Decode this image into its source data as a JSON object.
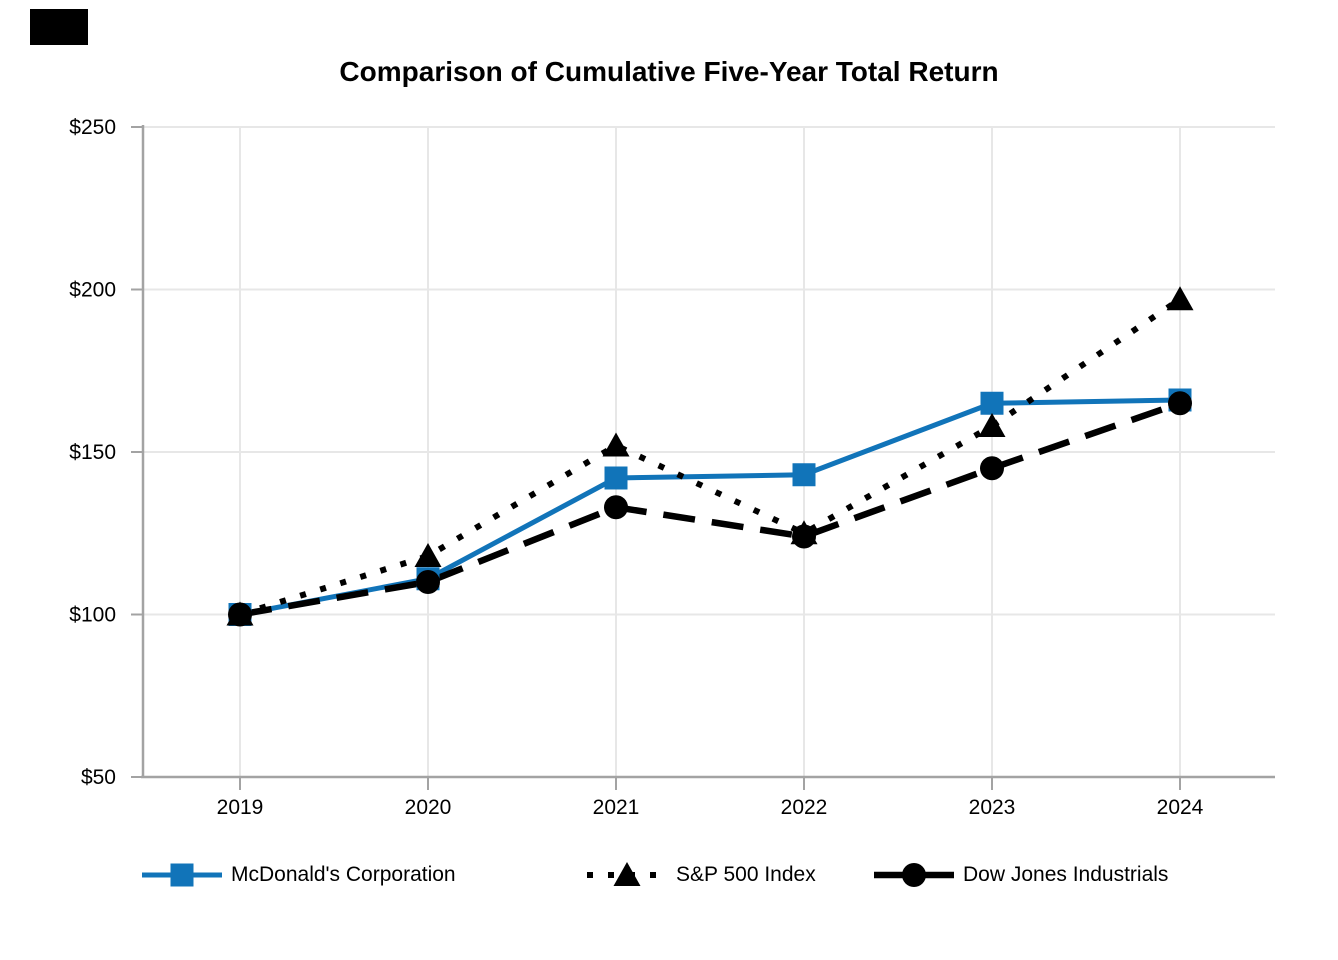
{
  "chart_data": {
    "type": "line",
    "title": "Comparison of Cumulative Five-Year Total Return",
    "categories": [
      "2019",
      "2020",
      "2021",
      "2022",
      "2023",
      "2024"
    ],
    "series": [
      {
        "name": "McDonald's Corporation",
        "values": [
          100,
          111,
          142,
          143,
          165,
          166
        ],
        "color": "#1174B9",
        "line_style": "solid",
        "marker": "square"
      },
      {
        "name": "S&P 500 Index",
        "values": [
          100,
          118,
          152,
          125,
          158,
          197
        ],
        "color": "#000000",
        "line_style": "dotted",
        "marker": "triangle"
      },
      {
        "name": "Dow Jones Industrials",
        "values": [
          100,
          110,
          133,
          124,
          145,
          165
        ],
        "color": "#000000",
        "line_style": "dashed",
        "marker": "circle"
      }
    ],
    "y_ticks": [
      {
        "value": 50,
        "label": "$50"
      },
      {
        "value": 100,
        "label": "$100"
      },
      {
        "value": 150,
        "label": "$150"
      },
      {
        "value": 200,
        "label": "$200"
      },
      {
        "value": 250,
        "label": "$250"
      }
    ],
    "ylim": [
      50,
      250
    ],
    "xlabel": "",
    "ylabel": "",
    "grid": true,
    "legend_position": "bottom"
  },
  "colors": {
    "accent_blue": "#1174B9",
    "series_black": "#000000",
    "gridline": "#E7E7E7",
    "axis": "#A3A3A3",
    "tick_label": "#000000"
  }
}
